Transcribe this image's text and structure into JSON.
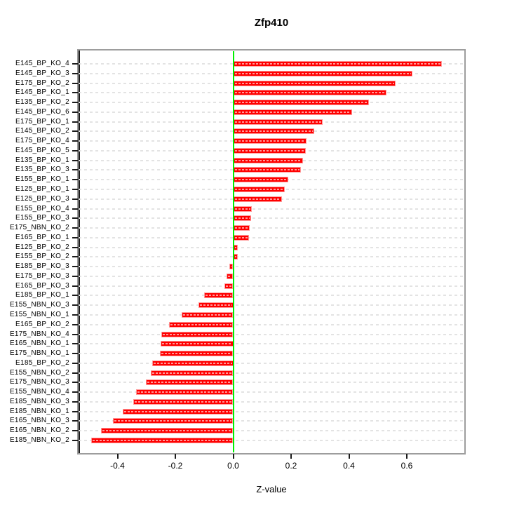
{
  "title": "Zfp410",
  "xlabel": "Z-value",
  "colors": {
    "bar": "#ff0000",
    "bar_border": "#ff9b9b",
    "zero_line": "#00f000",
    "grid": "#e3e3e3",
    "box_border": "#9d9d9d",
    "axis": "#1b1b1b"
  },
  "chart_data": {
    "type": "bar",
    "orientation": "horizontal",
    "title": "Zfp410",
    "xlabel": "Z-value",
    "ylabel": "",
    "xlim": [
      -0.5345,
      0.7988
    ],
    "x_tick_labels": [
      "-0.4",
      "-0.2",
      "0.0",
      "0.2",
      "0.4",
      "0.6"
    ],
    "x_tick_values": [
      -0.4,
      -0.2,
      0.0,
      0.2,
      0.4,
      0.6
    ],
    "grid": "horizontal-dashed",
    "zero_reference_line": 0.0,
    "categories": [
      "E145_BP_KO_4",
      "E145_BP_KO_3",
      "E175_BP_KO_2",
      "E145_BP_KO_1",
      "E135_BP_KO_2",
      "E145_BP_KO_6",
      "E175_BP_KO_1",
      "E145_BP_KO_2",
      "E175_BP_KO_4",
      "E145_BP_KO_5",
      "E135_BP_KO_1",
      "E135_BP_KO_3",
      "E155_BP_KO_1",
      "E125_BP_KO_1",
      "E125_BP_KO_3",
      "E155_BP_KO_4",
      "E155_BP_KO_3",
      "E175_NBN_KO_2",
      "E165_BP_KO_1",
      "E125_BP_KO_2",
      "E155_BP_KO_2",
      "E185_BP_KO_3",
      "E175_BP_KO_3",
      "E165_BP_KO_3",
      "E185_BP_KO_1",
      "E155_NBN_KO_3",
      "E155_NBN_KO_1",
      "E165_BP_KO_2",
      "E175_NBN_KO_4",
      "E165_NBN_KO_1",
      "E175_NBN_KO_1",
      "E185_BP_KO_2",
      "E155_NBN_KO_2",
      "E175_NBN_KO_3",
      "E155_NBN_KO_4",
      "E185_NBN_KO_3",
      "E185_NBN_KO_1",
      "E165_NBN_KO_3",
      "E165_NBN_KO_2",
      "E185_NBN_KO_2"
    ],
    "values": [
      0.72,
      0.62,
      0.56,
      0.53,
      0.47,
      0.41,
      0.31,
      0.28,
      0.253,
      0.25,
      0.24,
      0.233,
      0.19,
      0.178,
      0.168,
      0.065,
      0.062,
      0.057,
      0.055,
      0.016,
      0.015,
      -0.013,
      -0.024,
      -0.031,
      -0.101,
      -0.12,
      -0.178,
      -0.222,
      -0.248,
      -0.252,
      -0.253,
      -0.28,
      -0.285,
      -0.301,
      -0.335,
      -0.345,
      -0.381,
      -0.415,
      -0.458,
      -0.49
    ]
  }
}
